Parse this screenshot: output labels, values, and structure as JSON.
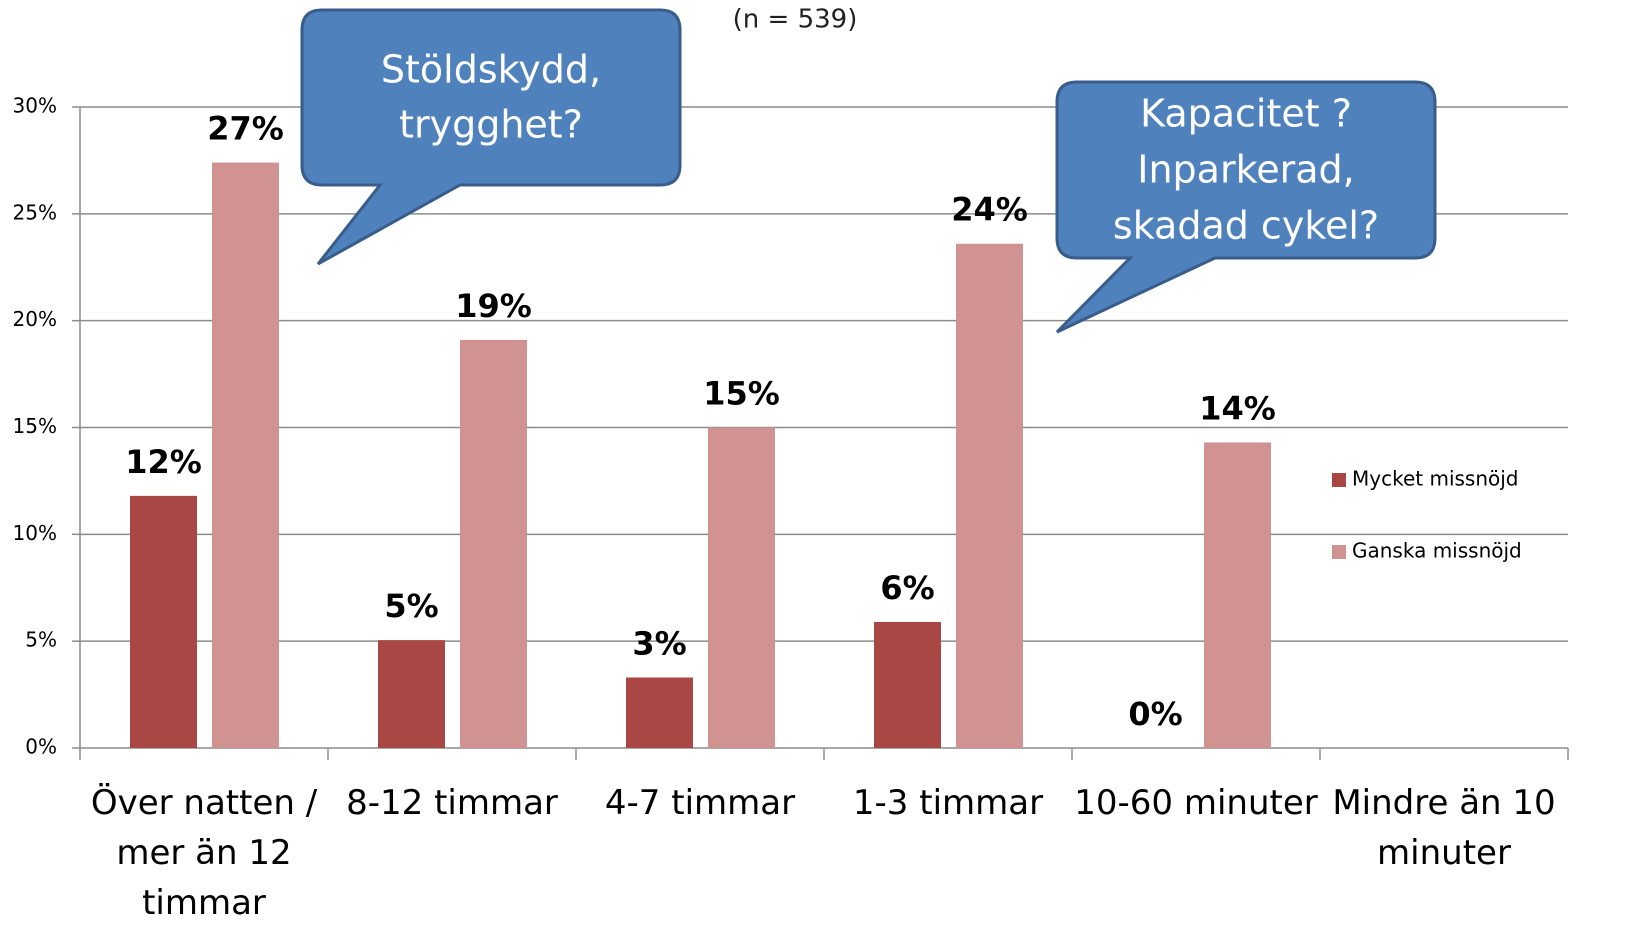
{
  "chart_data": {
    "type": "bar",
    "subtitle": "(n = 539)",
    "categories": [
      "Över natten / mer än 12 timmar",
      "8-12 timmar",
      "4-7 timmar",
      "1-3 timmar",
      "10-60 minuter",
      "Mindre än 10 minuter"
    ],
    "series": [
      {
        "name": "Mycket missnöjd",
        "color": "#a84744",
        "values": [
          11.8,
          5.05,
          3.3,
          5.9,
          0,
          null
        ],
        "value_labels": [
          "12%",
          "5%",
          "3%",
          "6%",
          "0%",
          null
        ]
      },
      {
        "name": "Ganska missnöjd",
        "color": "#d19392",
        "values": [
          27.4,
          19.1,
          15.0,
          23.6,
          14.3,
          null
        ],
        "value_labels": [
          "27%",
          "19%",
          "15%",
          "24%",
          "14%",
          null
        ]
      }
    ],
    "ylim": [
      0,
      30
    ],
    "yticks": [
      {
        "value": 0,
        "label": "0%"
      },
      {
        "value": 5,
        "label": "5%"
      },
      {
        "value": 10,
        "label": "10%"
      },
      {
        "value": 15,
        "label": "15%"
      },
      {
        "value": 20,
        "label": "20%"
      },
      {
        "value": 25,
        "label": "25%"
      },
      {
        "value": 30,
        "label": "30%"
      }
    ],
    "grid": true,
    "legend": "right",
    "annotations": [
      {
        "lines": [
          "Stöldskydd,",
          "trygghet?"
        ]
      },
      {
        "lines": [
          "Kapacitet ?",
          "Inparkerad,",
          "skadad cykel?"
        ]
      }
    ]
  }
}
